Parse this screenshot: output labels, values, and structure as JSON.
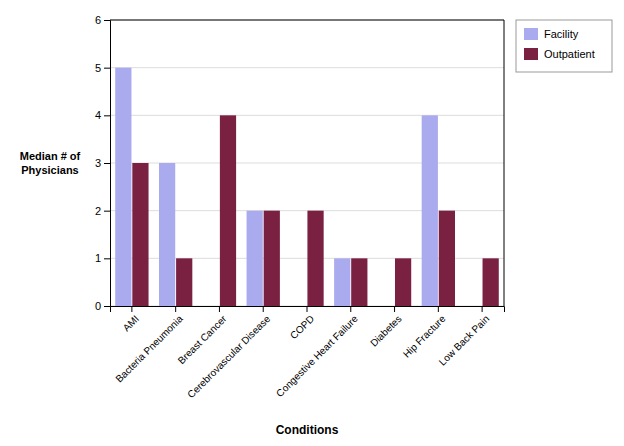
{
  "chart_data": {
    "type": "bar",
    "categories": [
      "AMI",
      "Bacteria Pneumonia",
      "Breast Cancer",
      "Cerebrovascular Disease",
      "COPD",
      "Congestive Heart Failure",
      "Diabetes",
      "Hip Fracture",
      "Low Back Pain"
    ],
    "series": [
      {
        "name": "Facility",
        "color": "#aaaaee",
        "values": [
          5,
          3,
          0,
          2,
          0,
          1,
          0,
          4,
          0
        ]
      },
      {
        "name": "Outpatient",
        "color": "#7a2040",
        "values": [
          3,
          1,
          4,
          2,
          2,
          1,
          1,
          2,
          1
        ]
      }
    ],
    "xlabel": "Conditions",
    "ylabel": "Median # of\nPhysicians",
    "ylim": [
      0,
      6
    ],
    "yticks": [
      0,
      1,
      2,
      3,
      4,
      5,
      6
    ],
    "grid": true,
    "legend": "upper right"
  }
}
